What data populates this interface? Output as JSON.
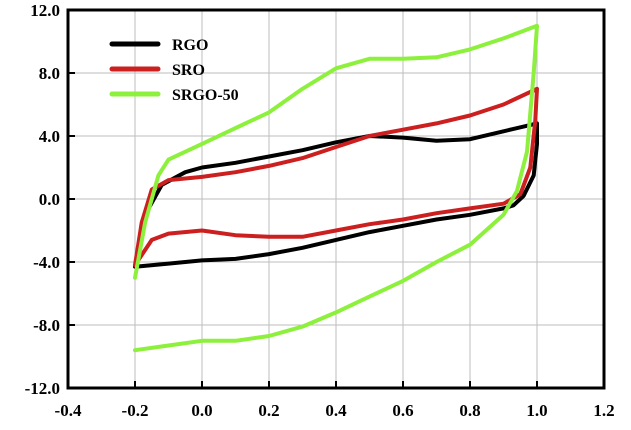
{
  "chart_data": {
    "type": "line",
    "title": "",
    "xlabel": "",
    "ylabel": "",
    "xlim": [
      -0.4,
      1.2
    ],
    "ylim": [
      -12.0,
      12.0
    ],
    "xticks": [
      -0.4,
      -0.2,
      0.0,
      0.2,
      0.4,
      0.6,
      0.8,
      1.0,
      1.2
    ],
    "xtick_labels": [
      "-0.4",
      "-0.2",
      "0.0",
      "0.2",
      "0.4",
      "0.6",
      "0.8",
      "1.0",
      "1.2"
    ],
    "yticks": [
      -12.0,
      -8.0,
      -4.0,
      0.0,
      4.0,
      8.0,
      12.0
    ],
    "ytick_labels": [
      "-12.0",
      "-8.0",
      "-4.0",
      "0.0",
      "4.0",
      "8.0",
      "12.0"
    ],
    "grid": true,
    "legend_position": "top-left",
    "series": [
      {
        "name": "RGO",
        "color": "#000000",
        "points": [
          [
            -0.2,
            -4.3
          ],
          [
            -0.17,
            -1.0
          ],
          [
            -0.12,
            0.9
          ],
          [
            -0.05,
            1.7
          ],
          [
            0.0,
            2.0
          ],
          [
            0.1,
            2.3
          ],
          [
            0.2,
            2.7
          ],
          [
            0.3,
            3.1
          ],
          [
            0.4,
            3.6
          ],
          [
            0.5,
            4.0
          ],
          [
            0.6,
            3.9
          ],
          [
            0.7,
            3.7
          ],
          [
            0.8,
            3.8
          ],
          [
            0.9,
            4.3
          ],
          [
            1.0,
            4.8
          ],
          [
            1.0,
            3.5
          ],
          [
            0.99,
            1.5
          ],
          [
            0.96,
            0.2
          ],
          [
            0.93,
            -0.4
          ],
          [
            0.9,
            -0.6
          ],
          [
            0.8,
            -1.0
          ],
          [
            0.7,
            -1.3
          ],
          [
            0.6,
            -1.7
          ],
          [
            0.5,
            -2.1
          ],
          [
            0.4,
            -2.6
          ],
          [
            0.3,
            -3.1
          ],
          [
            0.2,
            -3.5
          ],
          [
            0.1,
            -3.8
          ],
          [
            0.0,
            -3.9
          ],
          [
            -0.1,
            -4.1
          ],
          [
            -0.2,
            -4.3
          ]
        ]
      },
      {
        "name": "SRO",
        "color": "#cc1f1f",
        "points": [
          [
            -0.2,
            -4.2
          ],
          [
            -0.18,
            -1.5
          ],
          [
            -0.15,
            0.6
          ],
          [
            -0.1,
            1.2
          ],
          [
            0.0,
            1.4
          ],
          [
            0.1,
            1.7
          ],
          [
            0.2,
            2.1
          ],
          [
            0.3,
            2.6
          ],
          [
            0.4,
            3.3
          ],
          [
            0.5,
            4.0
          ],
          [
            0.6,
            4.4
          ],
          [
            0.7,
            4.8
          ],
          [
            0.8,
            5.3
          ],
          [
            0.9,
            6.0
          ],
          [
            1.0,
            7.0
          ],
          [
            0.995,
            5.0
          ],
          [
            0.98,
            2.0
          ],
          [
            0.95,
            0.3
          ],
          [
            0.9,
            -0.3
          ],
          [
            0.8,
            -0.6
          ],
          [
            0.7,
            -0.9
          ],
          [
            0.6,
            -1.3
          ],
          [
            0.5,
            -1.6
          ],
          [
            0.4,
            -2.0
          ],
          [
            0.3,
            -2.4
          ],
          [
            0.2,
            -2.4
          ],
          [
            0.1,
            -2.3
          ],
          [
            0.0,
            -2.0
          ],
          [
            -0.1,
            -2.2
          ],
          [
            -0.15,
            -2.6
          ],
          [
            -0.2,
            -4.2
          ]
        ]
      },
      {
        "name": "SRGO-50",
        "color": "#8cf03c",
        "points": [
          [
            -0.2,
            -5.0
          ],
          [
            -0.17,
            -1.5
          ],
          [
            -0.13,
            1.5
          ],
          [
            -0.1,
            2.5
          ],
          [
            0.0,
            3.5
          ],
          [
            0.1,
            4.5
          ],
          [
            0.2,
            5.5
          ],
          [
            0.3,
            7.0
          ],
          [
            0.4,
            8.3
          ],
          [
            0.5,
            8.9
          ],
          [
            0.6,
            8.9
          ],
          [
            0.7,
            9.0
          ],
          [
            0.8,
            9.5
          ],
          [
            0.9,
            10.2
          ],
          [
            1.0,
            11.0
          ],
          [
            0.99,
            8.0
          ],
          [
            0.97,
            3.0
          ],
          [
            0.94,
            0.5
          ],
          [
            0.9,
            -1.0
          ],
          [
            0.8,
            -2.9
          ],
          [
            0.7,
            -4.0
          ],
          [
            0.6,
            -5.2
          ],
          [
            0.5,
            -6.2
          ],
          [
            0.4,
            -7.2
          ],
          [
            0.3,
            -8.1
          ],
          [
            0.2,
            -8.7
          ],
          [
            0.1,
            -9.0
          ],
          [
            0.0,
            -9.0
          ],
          [
            -0.1,
            -9.3
          ],
          [
            -0.2,
            -9.6
          ]
        ]
      }
    ]
  }
}
